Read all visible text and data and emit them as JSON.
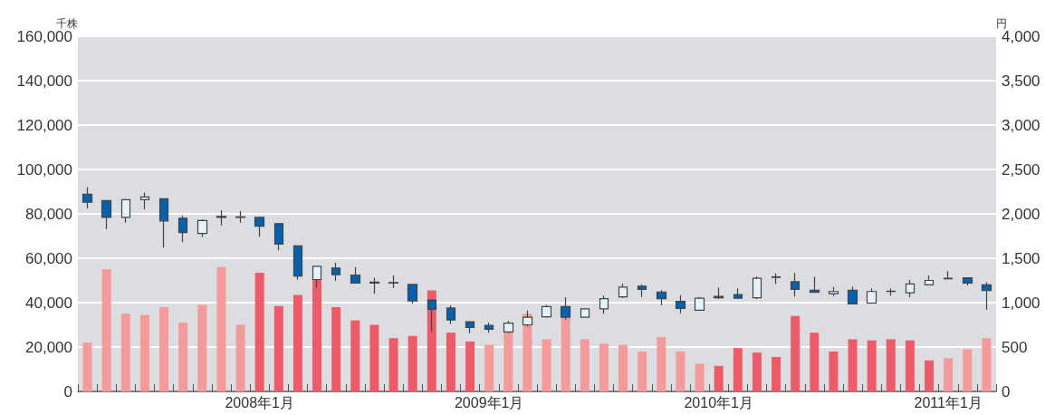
{
  "chart_data": {
    "type": "bar",
    "ylabel": "千株",
    "y2label": "円",
    "categories": [
      null,
      null,
      null,
      null,
      null,
      null,
      null,
      null,
      null,
      "2008年1月",
      null,
      null,
      null,
      null,
      null,
      null,
      null,
      null,
      null,
      null,
      null,
      "2009年1月",
      null,
      null,
      null,
      null,
      null,
      null,
      null,
      null,
      null,
      null,
      null,
      "2010年1月",
      null,
      null,
      null,
      null,
      null,
      null,
      null,
      null,
      null,
      null,
      null,
      "2011年1月",
      null,
      null
    ],
    "series": [
      {
        "values": [
          22000,
          55000,
          35000,
          34500,
          38000,
          31000,
          39000,
          56000,
          30000,
          53500,
          38500,
          43500,
          50500,
          38000,
          32000,
          30000,
          24000,
          25000,
          45500,
          26500,
          22500,
          21000,
          27000,
          35000,
          23500,
          33000,
          23500,
          21500,
          21000,
          18000,
          24500,
          18000,
          12500,
          11500,
          19500,
          17500,
          15500,
          34000,
          26500,
          18000,
          23500,
          23000,
          23500,
          23000,
          14000,
          15000,
          19000,
          24000
        ],
        "colors": [
          "#f59a98",
          "#f59a98",
          "#f59a98",
          "#f59a98",
          "#f59a98",
          "#f59a98",
          "#f59a98",
          "#f59a98",
          "#f59a98",
          "#ef5a68",
          "#ef5a68",
          "#ef5a68",
          "#ef5a68",
          "#ef5a68",
          "#ef5a68",
          "#ef5a68",
          "#ef5a68",
          "#ef5a68",
          "#ef5a68",
          "#ef5a68",
          "#ef5a68",
          "#f59a98",
          "#f59a98",
          "#f59a98",
          "#f59a98",
          "#f59a98",
          "#f59a98",
          "#f59a98",
          "#f59a98",
          "#f59a98",
          "#f59a98",
          "#f59a98",
          "#f59a98",
          "#ef5a68",
          "#ef5a68",
          "#ef5a68",
          "#ef5a68",
          "#ef5a68",
          "#ef5a68",
          "#ef5a68",
          "#ef5a68",
          "#ef5a68",
          "#ef5a68",
          "#ef5a68",
          "#ef5a68",
          "#f59a98",
          "#f59a98",
          "#f59a98"
        ]
      },
      {
        "type": "candlestick",
        "axis": "y2",
        "ohlc": [
          [
            2220,
            2300,
            2060,
            2130
          ],
          [
            2150,
            2150,
            1830,
            1960
          ],
          [
            1960,
            2160,
            1900,
            2160
          ],
          [
            2160,
            2240,
            2050,
            2190
          ],
          [
            2170,
            2170,
            1620,
            1920
          ],
          [
            1950,
            1980,
            1680,
            1790
          ],
          [
            1780,
            1940,
            1740,
            1925
          ],
          [
            1970,
            2040,
            1870,
            1960
          ],
          [
            1965,
            2030,
            1900,
            1960
          ],
          [
            1960,
            1970,
            1740,
            1860
          ],
          [
            1890,
            1890,
            1590,
            1660
          ],
          [
            1640,
            1640,
            1260,
            1300
          ],
          [
            1260,
            1415,
            1165,
            1410
          ],
          [
            1390,
            1450,
            1245,
            1315
          ],
          [
            1310,
            1400,
            1220,
            1220
          ],
          [
            1230,
            1280,
            1100,
            1220
          ],
          [
            1225,
            1305,
            1165,
            1220
          ],
          [
            1205,
            1205,
            990,
            1020
          ],
          [
            1030,
            1040,
            675,
            925
          ],
          [
            940,
            970,
            760,
            805
          ],
          [
            785,
            785,
            655,
            720
          ],
          [
            745,
            775,
            660,
            700
          ],
          [
            670,
            795,
            655,
            770
          ],
          [
            750,
            910,
            730,
            835
          ],
          [
            840,
            975,
            830,
            955
          ],
          [
            955,
            1060,
            805,
            835
          ],
          [
            835,
            935,
            830,
            930
          ],
          [
            930,
            1080,
            875,
            1045
          ],
          [
            1065,
            1215,
            1050,
            1175
          ],
          [
            1185,
            1205,
            1065,
            1150
          ],
          [
            1120,
            1140,
            970,
            1045
          ],
          [
            1015,
            1085,
            880,
            935
          ],
          [
            915,
            1065,
            910,
            1050
          ],
          [
            1070,
            1170,
            1040,
            1055
          ],
          [
            1090,
            1160,
            1040,
            1050
          ],
          [
            1055,
            1295,
            1040,
            1275
          ],
          [
            1290,
            1330,
            1210,
            1285
          ],
          [
            1235,
            1335,
            1070,
            1150
          ],
          [
            1140,
            1290,
            1110,
            1115
          ],
          [
            1100,
            1175,
            1075,
            1125
          ],
          [
            1140,
            1180,
            985,
            985
          ],
          [
            995,
            1160,
            995,
            1125
          ],
          [
            1130,
            1160,
            1080,
            1125
          ],
          [
            1110,
            1255,
            1060,
            1210
          ],
          [
            1200,
            1305,
            1200,
            1250
          ],
          [
            1275,
            1355,
            1260,
            1270
          ],
          [
            1280,
            1280,
            1195,
            1220
          ],
          [
            1200,
            1230,
            920,
            1135
          ]
        ],
        "colors": [
          "#0062b0",
          "#0062b0",
          "#e4f3fb",
          "#e4f3fb",
          "#0062b0",
          "#0062b0",
          "#e4f3fb",
          "#0062b0",
          "#0062b0",
          "#0062b0",
          "#0062b0",
          "#0062b0",
          "#e4f3fb",
          "#0062b0",
          "#0062b0",
          "#0062b0",
          "#0062b0",
          "#0062b0",
          "#0062b0",
          "#0062b0",
          "#0062b0",
          "#0062b0",
          "#e4f3fb",
          "#e4f3fb",
          "#e4f3fb",
          "#0062b0",
          "#e4f3fb",
          "#e4f3fb",
          "#e4f3fb",
          "#0062b0",
          "#0062b0",
          "#0062b0",
          "#e4f3fb",
          "#0062b0",
          "#0062b0",
          "#e4f3fb",
          "#0062b0",
          "#0062b0",
          "#0062b0",
          "#e4f3fb",
          "#0062b0",
          "#e4f3fb",
          "#0062b0",
          "#e4f3fb",
          "#e4f3fb",
          "#0062b0",
          "#0062b0",
          "#0062b0"
        ]
      }
    ],
    "ylim": [
      0,
      160000
    ],
    "yticks": [
      0,
      {
        "value": 20000,
        "label": "20,000"
      },
      {
        "value": 40000,
        "label": "40,000"
      },
      {
        "value": 60000,
        "label": "60,000"
      },
      {
        "value": 80000,
        "label": "80,000"
      },
      {
        "value": 100000,
        "label": "100,000"
      },
      {
        "value": 120000,
        "label": "120,000"
      },
      {
        "value": 140000,
        "label": "140,000"
      },
      {
        "value": 160000,
        "label": "160,000"
      }
    ],
    "y2lim": [
      0,
      4000
    ],
    "y2ticks": [
      0,
      500,
      {
        "value": 1000,
        "label": "1,000"
      },
      {
        "value": 1500,
        "label": "1,500"
      },
      {
        "value": 2000,
        "label": "2,000"
      },
      {
        "value": 2500,
        "label": "2,500"
      },
      {
        "value": 3000,
        "label": "3,000"
      },
      {
        "value": 3500,
        "label": "3,500"
      },
      {
        "value": 4000,
        "label": "4,000"
      }
    ],
    "grid": "y"
  }
}
